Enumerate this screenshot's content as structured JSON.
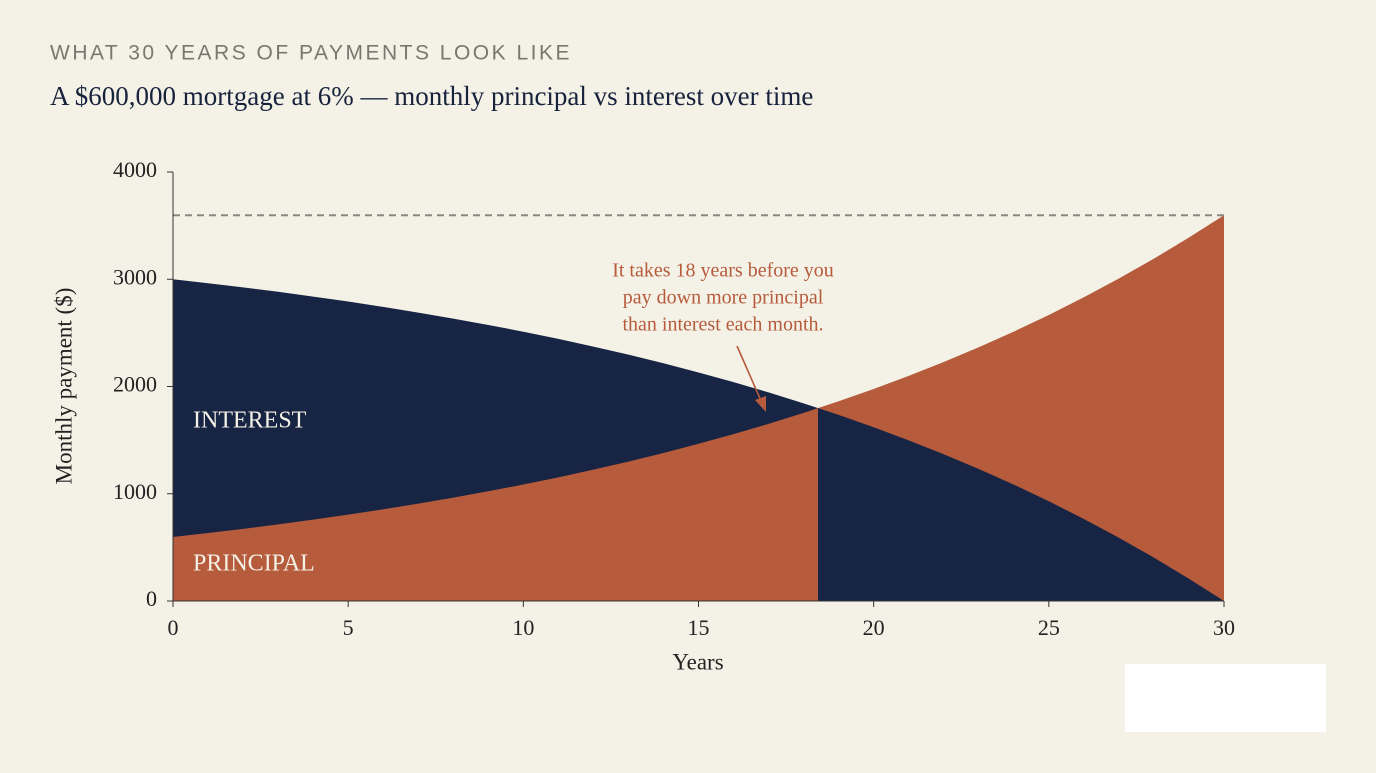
{
  "chart_data": {
    "type": "area",
    "eyebrow": "WHAT 30 YEARS OF PAYMENTS LOOK LIKE",
    "title": "A $600,000 mortgage at 6% — monthly principal vs interest over time",
    "x_label": "Years",
    "y_label": "Monthly payment ($)",
    "x": [
      0,
      1,
      2,
      3,
      4,
      5,
      6,
      7,
      8,
      9,
      10,
      11,
      12,
      13,
      14,
      15,
      16,
      17,
      18,
      19,
      20,
      21,
      22,
      23,
      24,
      25,
      26,
      27,
      28,
      29,
      30
    ],
    "series": [
      {
        "name": "INTEREST",
        "color": "#172443",
        "values": [
          3000,
          2963,
          2924,
          2883,
          2838,
          2792,
          2742,
          2689,
          2633,
          2574,
          2511,
          2444,
          2372,
          2297,
          2217,
          2131,
          2041,
          1945,
          1843,
          1735,
          1620,
          1498,
          1368,
          1231,
          1085,
          930,
          765,
          590,
          405,
          208,
          0
        ]
      },
      {
        "name": "PRINCIPAL",
        "color": "#b65b3c",
        "values": [
          597,
          634,
          673,
          714,
          759,
          805,
          855,
          908,
          964,
          1023,
          1086,
          1153,
          1225,
          1300,
          1380,
          1466,
          1556,
          1652,
          1754,
          1862,
          1977,
          2099,
          2229,
          2366,
          2512,
          2667,
          2832,
          3007,
          3192,
          3389,
          3597
        ]
      }
    ],
    "reference_line": 3597,
    "annotation": [
      "It takes 18 years before you",
      "pay down more principal",
      "than interest each month."
    ],
    "xlim": [
      0,
      30
    ],
    "xticks": [
      0,
      5,
      10,
      15,
      20,
      25,
      30
    ],
    "ylim": [
      0,
      4000
    ],
    "yticks": [
      0,
      1000,
      2000,
      3000,
      4000
    ]
  }
}
